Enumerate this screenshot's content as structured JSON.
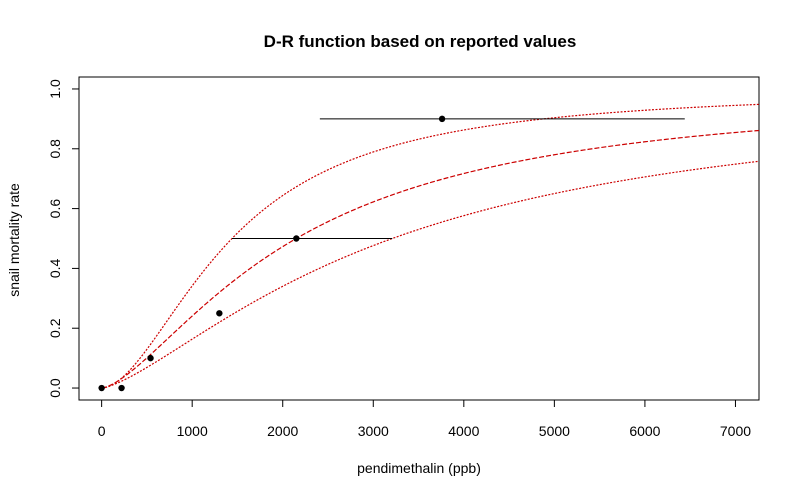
{
  "chart_data": {
    "type": "scatter",
    "title": "D-R function based on reported values",
    "xlabel": "pendimethalin (ppb)",
    "ylabel": "snail mortality rate",
    "xlim": [
      -250,
      7260
    ],
    "ylim": [
      -0.04,
      1.04
    ],
    "x_ticks": [
      0,
      1000,
      2000,
      3000,
      4000,
      5000,
      6000,
      7000
    ],
    "y_ticks": [
      0.0,
      0.2,
      0.4,
      0.6,
      0.8,
      1.0
    ],
    "y_tick_labels": [
      "0.0",
      "0.2",
      "0.4",
      "0.6",
      "0.8",
      "1.0"
    ],
    "grid": false,
    "points": [
      {
        "x": 0,
        "y": 0.0
      },
      {
        "x": 220,
        "y": 0.0
      },
      {
        "x": 540,
        "y": 0.1
      },
      {
        "x": 1300,
        "y": 0.25
      },
      {
        "x": 2150,
        "y": 0.5
      },
      {
        "x": 3760,
        "y": 0.9
      }
    ],
    "error_bars": [
      {
        "y": 0.5,
        "x_low": 1440,
        "x_high": 3210
      },
      {
        "y": 0.9,
        "x_low": 2410,
        "x_high": 6440
      }
    ],
    "curves": [
      {
        "style": "dotted",
        "color": "#cc0000",
        "ec50": 1440,
        "slope": 1.8
      },
      {
        "style": "dashed",
        "color": "#cc0000",
        "ec50": 2150,
        "slope": 1.5
      },
      {
        "style": "dotted",
        "color": "#cc0000",
        "ec50": 3210,
        "slope": 1.4
      }
    ]
  }
}
